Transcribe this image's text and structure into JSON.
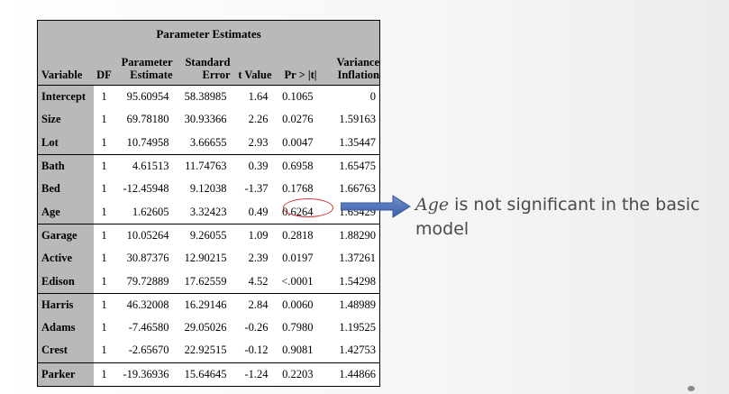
{
  "table": {
    "title": "Parameter Estimates",
    "headers": {
      "variable": "Variable",
      "df": "DF",
      "estimate": [
        "Parameter",
        "Estimate"
      ],
      "se": [
        "Standard",
        "Error"
      ],
      "tvalue": "t Value",
      "p": "Pr > |t|",
      "vif": [
        "Variance",
        "Inflation"
      ]
    },
    "rows": [
      {
        "variable": "Intercept",
        "df": "1",
        "estimate": "95.60954",
        "se": "58.38985",
        "t": "1.64",
        "p": "0.1065",
        "vif": "0"
      },
      {
        "variable": "Size",
        "df": "1",
        "estimate": "69.78180",
        "se": "30.93366",
        "t": "2.26",
        "p": "0.0276",
        "vif": "1.59163"
      },
      {
        "variable": "Lot",
        "df": "1",
        "estimate": "10.74958",
        "se": "3.66655",
        "t": "2.93",
        "p": "0.0047",
        "vif": "1.35447"
      },
      {
        "variable": "Bath",
        "df": "1",
        "estimate": "4.61513",
        "se": "11.74763",
        "t": "0.39",
        "p": "0.6958",
        "vif": "1.65475"
      },
      {
        "variable": "Bed",
        "df": "1",
        "estimate": "-12.45948",
        "se": "9.12038",
        "t": "-1.37",
        "p": "0.1768",
        "vif": "1.66763"
      },
      {
        "variable": "Age",
        "df": "1",
        "estimate": "1.62605",
        "se": "3.32423",
        "t": "0.49",
        "p": "0.6264",
        "vif": "1.65429"
      },
      {
        "variable": "Garage",
        "df": "1",
        "estimate": "10.05264",
        "se": "9.26055",
        "t": "1.09",
        "p": "0.2818",
        "vif": "1.88290"
      },
      {
        "variable": "Active",
        "df": "1",
        "estimate": "30.87376",
        "se": "12.90215",
        "t": "2.39",
        "p": "0.0197",
        "vif": "1.37261"
      },
      {
        "variable": "Edison",
        "df": "1",
        "estimate": "79.72889",
        "se": "17.62559",
        "t": "4.52",
        "p": "<.0001",
        "vif": "1.54298"
      },
      {
        "variable": "Harris",
        "df": "1",
        "estimate": "46.32008",
        "se": "16.29146",
        "t": "2.84",
        "p": "0.0060",
        "vif": "1.48989"
      },
      {
        "variable": "Adams",
        "df": "1",
        "estimate": "-7.46580",
        "se": "29.05026",
        "t": "-0.26",
        "p": "0.7980",
        "vif": "1.19525"
      },
      {
        "variable": "Crest",
        "df": "1",
        "estimate": "-2.65670",
        "se": "22.92515",
        "t": "-0.12",
        "p": "0.9081",
        "vif": "1.42753"
      },
      {
        "variable": "Parker",
        "df": "1",
        "estimate": "-19.36936",
        "se": "15.64645",
        "t": "-1.24",
        "p": "0.2203",
        "vif": "1.44866"
      }
    ],
    "group_starts": [
      0,
      3,
      6,
      9,
      12
    ]
  },
  "callout": {
    "emphasis": "Age",
    "text_rest": " is not significant  in the basic model"
  },
  "colors": {
    "header_bg": "#b9b9b9",
    "arrow": "#4a6db3",
    "highlight": "#d23232"
  }
}
